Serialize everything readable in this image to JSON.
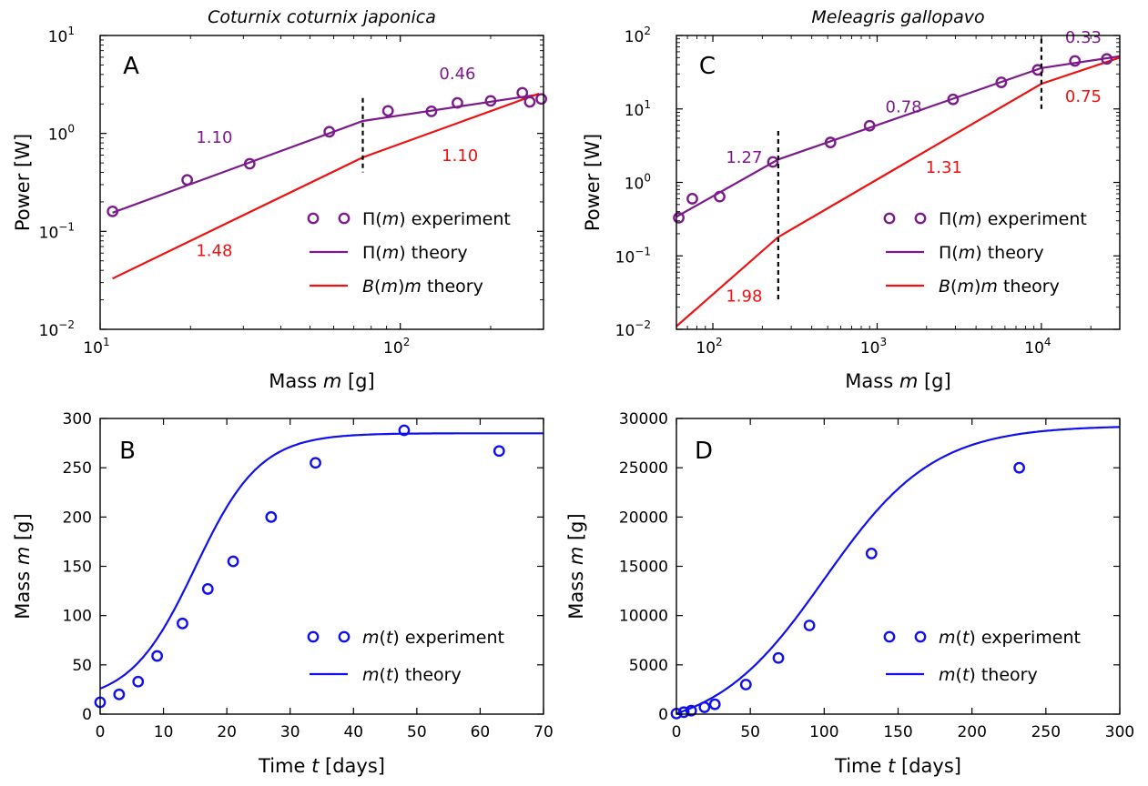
{
  "chart_data": [
    {
      "panel": "A",
      "type": "line",
      "title": "Coturnix coturnix japonica",
      "xlabel": "Mass m [g]",
      "ylabel": "Power [W]",
      "xscale": "log",
      "yscale": "log",
      "xlim": [
        10,
        300
      ],
      "ylim": [
        0.01,
        10
      ],
      "x_tick_labels": [
        "10",
        "10",
        "10"
      ],
      "x_tick_exponents": [
        "1",
        "2"
      ],
      "y_tick_labels": [
        "10",
        "10",
        "10",
        "10"
      ],
      "y_tick_exponents": [
        "−2",
        "−1",
        "0",
        "1"
      ],
      "legend_position": "right",
      "colors": {
        "experiment": "#7b1a8a",
        "theory_pi": "#7b1a8a",
        "theory_bm": "#ee1111"
      },
      "series": [
        {
          "name": "Π(m) experiment",
          "kind": "markers",
          "points": [
            [
              11,
              0.16
            ],
            [
              19.5,
              0.335
            ],
            [
              31.5,
              0.49
            ],
            [
              58,
              1.04
            ],
            [
              91,
              1.7
            ],
            [
              127,
              1.68
            ],
            [
              155,
              2.05
            ],
            [
              200,
              2.15
            ],
            [
              255,
              2.6
            ],
            [
              270,
              2.1
            ],
            [
              295,
              2.25
            ]
          ]
        },
        {
          "name": "Π(m) theory",
          "kind": "line",
          "points": [
            [
              11,
              0.155
            ],
            [
              75,
              1.34
            ],
            [
              290,
              2.5
            ]
          ]
        },
        {
          "name": "B(m)m theory",
          "kind": "line",
          "points": [
            [
              11,
              0.033
            ],
            [
              75,
              0.57
            ],
            [
              290,
              2.55
            ]
          ]
        }
      ],
      "breakpoint": {
        "x": 75,
        "y_range": [
          0.4,
          2.3
        ]
      },
      "annotations": [
        {
          "text": "1.10",
          "x": 24,
          "y": 0.8,
          "color": "#7b1a8a"
        },
        {
          "text": "0.46",
          "x": 155,
          "y": 3.6,
          "color": "#7b1a8a"
        },
        {
          "text": "1.10",
          "x": 158,
          "y": 0.52,
          "color": "#ee1111"
        },
        {
          "text": "1.48",
          "x": 24,
          "y": 0.056,
          "color": "#ee1111"
        }
      ]
    },
    {
      "panel": "B",
      "type": "line",
      "xlabel": "Time t [days]",
      "ylabel": "Mass m [g]",
      "xlim": [
        0,
        70
      ],
      "ylim": [
        0,
        300
      ],
      "x_ticks": [
        "0",
        "10",
        "20",
        "30",
        "40",
        "50",
        "60",
        "70"
      ],
      "y_ticks": [
        "0",
        "50",
        "100",
        "150",
        "200",
        "250",
        "300"
      ],
      "legend_position": "bottom-right",
      "colors": {
        "experiment": "#1010ee",
        "theory": "#1010ee"
      },
      "series": [
        {
          "name": "m(t) experiment",
          "kind": "markers",
          "points": [
            [
              0,
              12
            ],
            [
              3,
              20
            ],
            [
              6,
              33
            ],
            [
              9,
              59
            ],
            [
              13,
              92
            ],
            [
              17,
              127
            ],
            [
              21,
              155
            ],
            [
              27,
              200
            ],
            [
              34,
              255
            ],
            [
              48,
              288
            ],
            [
              63,
              267
            ]
          ]
        },
        {
          "name": "m(t) theory",
          "kind": "line",
          "model": "logistic",
          "params": {
            "K": 285,
            "r": 0.195,
            "t0": 15,
            "offset": 12
          }
        }
      ]
    },
    {
      "panel": "C",
      "type": "line",
      "title": "Meleagris gallopavo",
      "xlabel": "Mass m [g]",
      "ylabel": "Power [W]",
      "xscale": "log",
      "yscale": "log",
      "xlim": [
        60,
        30000
      ],
      "ylim": [
        0.01,
        100
      ],
      "x_tick_labels": [
        "10",
        "10",
        "10"
      ],
      "x_tick_exponents": [
        "2",
        "3",
        "4"
      ],
      "y_tick_labels": [
        "10",
        "10",
        "10",
        "10",
        "10"
      ],
      "y_tick_exponents": [
        "−2",
        "−1",
        "0",
        "1",
        "2"
      ],
      "legend_position": "right",
      "colors": {
        "experiment": "#7b1a8a",
        "theory_pi": "#7b1a8a",
        "theory_bm": "#ee1111"
      },
      "series": [
        {
          "name": "Π(m) experiment",
          "kind": "markers",
          "points": [
            [
              62,
              0.33
            ],
            [
              75,
              0.6
            ],
            [
              110,
              0.64
            ],
            [
              232,
              1.9
            ],
            [
              520,
              3.5
            ],
            [
              900,
              5.9
            ],
            [
              2900,
              13.5
            ],
            [
              5700,
              23
            ],
            [
              9500,
              34
            ],
            [
              16000,
              45
            ],
            [
              25000,
              48
            ]
          ]
        },
        {
          "name": "Π(m) theory",
          "kind": "line",
          "points": [
            [
              60,
              0.34
            ],
            [
              250,
              2.05
            ],
            [
              10000,
              36
            ],
            [
              30000,
              52
            ]
          ]
        },
        {
          "name": "B(m)m theory",
          "kind": "line",
          "points": [
            [
              60,
              0.011
            ],
            [
              250,
              0.18
            ],
            [
              10000,
              22
            ],
            [
              30000,
              50
            ]
          ]
        }
      ],
      "breakpoints": [
        {
          "x": 250,
          "y_range": [
            0.025,
            5.0
          ]
        },
        {
          "x": 10000,
          "y_range": [
            10,
            90
          ]
        }
      ],
      "annotations": [
        {
          "text": "1.27",
          "x": 155,
          "y": 1.85,
          "color": "#7b1a8a"
        },
        {
          "text": "0.78",
          "x": 1450,
          "y": 9.0,
          "color": "#7b1a8a"
        },
        {
          "text": "0.33",
          "x": 18000,
          "y": 80,
          "color": "#7b1a8a"
        },
        {
          "text": "0.75",
          "x": 18000,
          "y": 12.5,
          "color": "#ee1111"
        },
        {
          "text": "1.31",
          "x": 2550,
          "y": 1.35,
          "color": "#ee1111"
        },
        {
          "text": "1.98",
          "x": 155,
          "y": 0.024,
          "color": "#ee1111"
        }
      ]
    },
    {
      "panel": "D",
      "type": "line",
      "xlabel": "Time t [days]",
      "ylabel": "Mass m [g]",
      "xlim": [
        0,
        300
      ],
      "ylim": [
        0,
        30000
      ],
      "x_ticks": [
        "0",
        "50",
        "100",
        "150",
        "200",
        "250",
        "300"
      ],
      "y_ticks": [
        "0",
        "5000",
        "10000",
        "15000",
        "20000",
        "25000",
        "30000"
      ],
      "legend_position": "bottom-right",
      "colors": {
        "experiment": "#1010ee",
        "theory": "#1010ee"
      },
      "series": [
        {
          "name": "m(t) experiment",
          "kind": "markers",
          "points": [
            [
              0,
              60
            ],
            [
              5,
              200
            ],
            [
              10,
              350
            ],
            [
              19,
              700
            ],
            [
              26,
              1000
            ],
            [
              47,
              3000
            ],
            [
              69,
              5700
            ],
            [
              90,
              9000
            ],
            [
              132,
              16300
            ],
            [
              232,
              25000
            ]
          ]
        },
        {
          "name": "m(t) theory",
          "kind": "line",
          "model": "logistic",
          "params": {
            "K": 29200,
            "r": 0.027,
            "t0": 100,
            "offset": -1980
          }
        }
      ]
    }
  ],
  "panel_letters": {
    "A": "A",
    "B": "B",
    "C": "C",
    "D": "D"
  },
  "legend": {
    "pi_experiment": "Π(m) experiment",
    "pi_theory": "Π(m) theory",
    "bm_theory": "B(m)m theory",
    "mt_experiment": "m(t) experiment",
    "mt_theory": "m(t) theory"
  }
}
